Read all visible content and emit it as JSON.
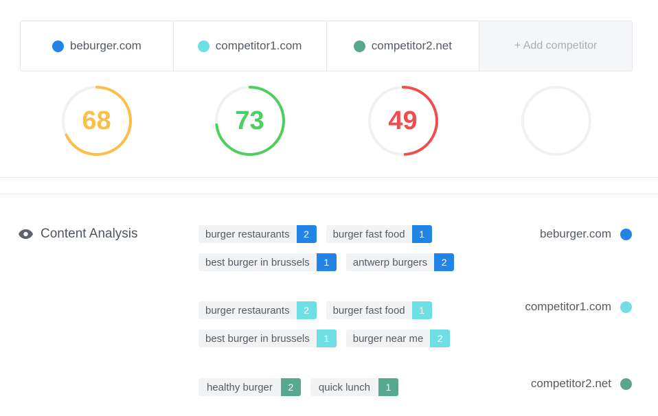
{
  "colors": {
    "site": "#2285e6",
    "competitor1": "#6fdfe6",
    "competitor2": "#56a98f",
    "score_high": "#4ccf5f",
    "score_mid": "#fbbf48",
    "score_low": "#ee4e4e",
    "track": "#f0f1f4"
  },
  "competitors": [
    {
      "name": "beburger.com",
      "color": "#2285e6"
    },
    {
      "name": "competitor1.com",
      "color": "#6fdfe6"
    },
    {
      "name": "competitor2.net",
      "color": "#56a98f"
    }
  ],
  "add_competitor_label": "+ Add competitor",
  "scores": [
    {
      "value": "68",
      "percent": 68,
      "color": "#fbbf48"
    },
    {
      "value": "73",
      "percent": 73,
      "color": "#4ccf5f"
    },
    {
      "value": "49",
      "percent": 49,
      "color": "#ee4e4e"
    },
    {
      "value": "",
      "percent": 0,
      "color": "#f0f1f4"
    }
  ],
  "content_analysis": {
    "title": "Content Analysis",
    "icon": "eye-icon",
    "groups": [
      {
        "site": "beburger.com",
        "color": "#2285e6",
        "rows": [
          [
            {
              "keyword": "burger restaurants",
              "count": "2"
            },
            {
              "keyword": "burger fast food",
              "count": "1"
            }
          ],
          [
            {
              "keyword": "best burger in brussels",
              "count": "1"
            },
            {
              "keyword": "antwerp burgers",
              "count": "2"
            }
          ]
        ]
      },
      {
        "site": "competitor1.com",
        "color": "#6fdfe6",
        "rows": [
          [
            {
              "keyword": "burger restaurants",
              "count": "2"
            },
            {
              "keyword": "burger fast food",
              "count": "1"
            }
          ],
          [
            {
              "keyword": "best burger in brussels",
              "count": "1"
            },
            {
              "keyword": "burger near me",
              "count": "2"
            }
          ]
        ]
      },
      {
        "site": "competitor2.net",
        "color": "#56a98f",
        "rows": [
          [
            {
              "keyword": "healthy burger",
              "count": "2"
            },
            {
              "keyword": "quick lunch",
              "count": "1"
            }
          ]
        ]
      }
    ]
  }
}
